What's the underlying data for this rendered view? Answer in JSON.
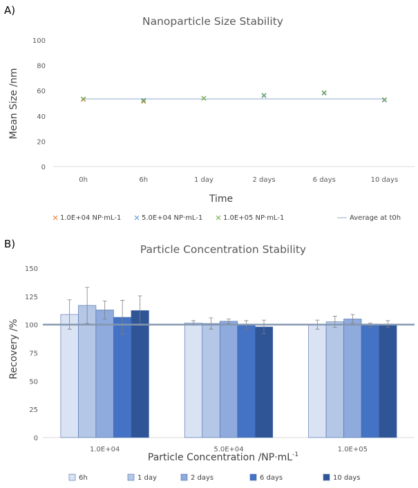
{
  "chart_data": [
    {
      "panel": "A)",
      "type": "scatter",
      "title": "Nanoparticle Size Stability",
      "xlabel": "Time",
      "ylabel": "Mean Size /nm",
      "categories": [
        "0h",
        "6h",
        "1 day",
        "2 days",
        "6 days",
        "10 days"
      ],
      "ylim": [
        0,
        100
      ],
      "yticks": [
        0,
        20,
        40,
        60,
        80,
        100
      ],
      "grid": false,
      "legend_position": "bottom",
      "series": [
        {
          "name": "1.0E+04 NP·mL-1",
          "color": "#ed7d31",
          "marker": "x",
          "values": [
            53,
            51.5,
            54,
            56,
            58,
            53
          ]
        },
        {
          "name": "5.0E+04 NP·mL-1",
          "color": "#5b9bd5",
          "marker": "x",
          "values": [
            53.5,
            52.5,
            54,
            56,
            58,
            52.5
          ]
        },
        {
          "name": "1.0E+05 NP·mL-1",
          "color": "#70ad47",
          "marker": "x",
          "values": [
            53.5,
            52,
            54,
            56.5,
            58.5,
            53
          ]
        }
      ],
      "reference_line": {
        "name": "Average at t0h",
        "value": 53.5,
        "color": "#a6b9d8"
      }
    },
    {
      "panel": "B)",
      "type": "bar",
      "title": "Particle Concentration Stability",
      "xlabel": "Particle Concentration /NP·mL",
      "xlabel_superscript": "-1",
      "ylabel": "Recovery /%",
      "categories": [
        "1.0E+04",
        "5.0E+04",
        "1.0E+05"
      ],
      "ylim": [
        0,
        150
      ],
      "yticks": [
        0,
        25,
        50,
        75,
        100,
        125,
        150
      ],
      "grid": false,
      "legend_position": "bottom",
      "series": [
        {
          "name": "6h",
          "color": "#dae3f3",
          "values": [
            109,
            101.5,
            100
          ],
          "errors": [
            13,
            2,
            4
          ]
        },
        {
          "name": "1 day",
          "color": "#b4c7e7",
          "values": [
            117,
            101,
            102.5
          ],
          "errors": [
            16,
            5,
            5
          ]
        },
        {
          "name": "2 days",
          "color": "#8faadc",
          "values": [
            113,
            103,
            105
          ],
          "errors": [
            8,
            2,
            4
          ]
        },
        {
          "name": "6 days",
          "color": "#4472c4",
          "values": [
            106.5,
            99.5,
            99.5
          ],
          "errors": [
            15,
            4,
            2
          ]
        },
        {
          "name": "10 days",
          "color": "#2f5597",
          "values": [
            112.5,
            98,
            100.5
          ],
          "errors": [
            13,
            6,
            3
          ]
        }
      ],
      "reference_line": {
        "value": 100,
        "color": "#8497b0"
      }
    }
  ]
}
